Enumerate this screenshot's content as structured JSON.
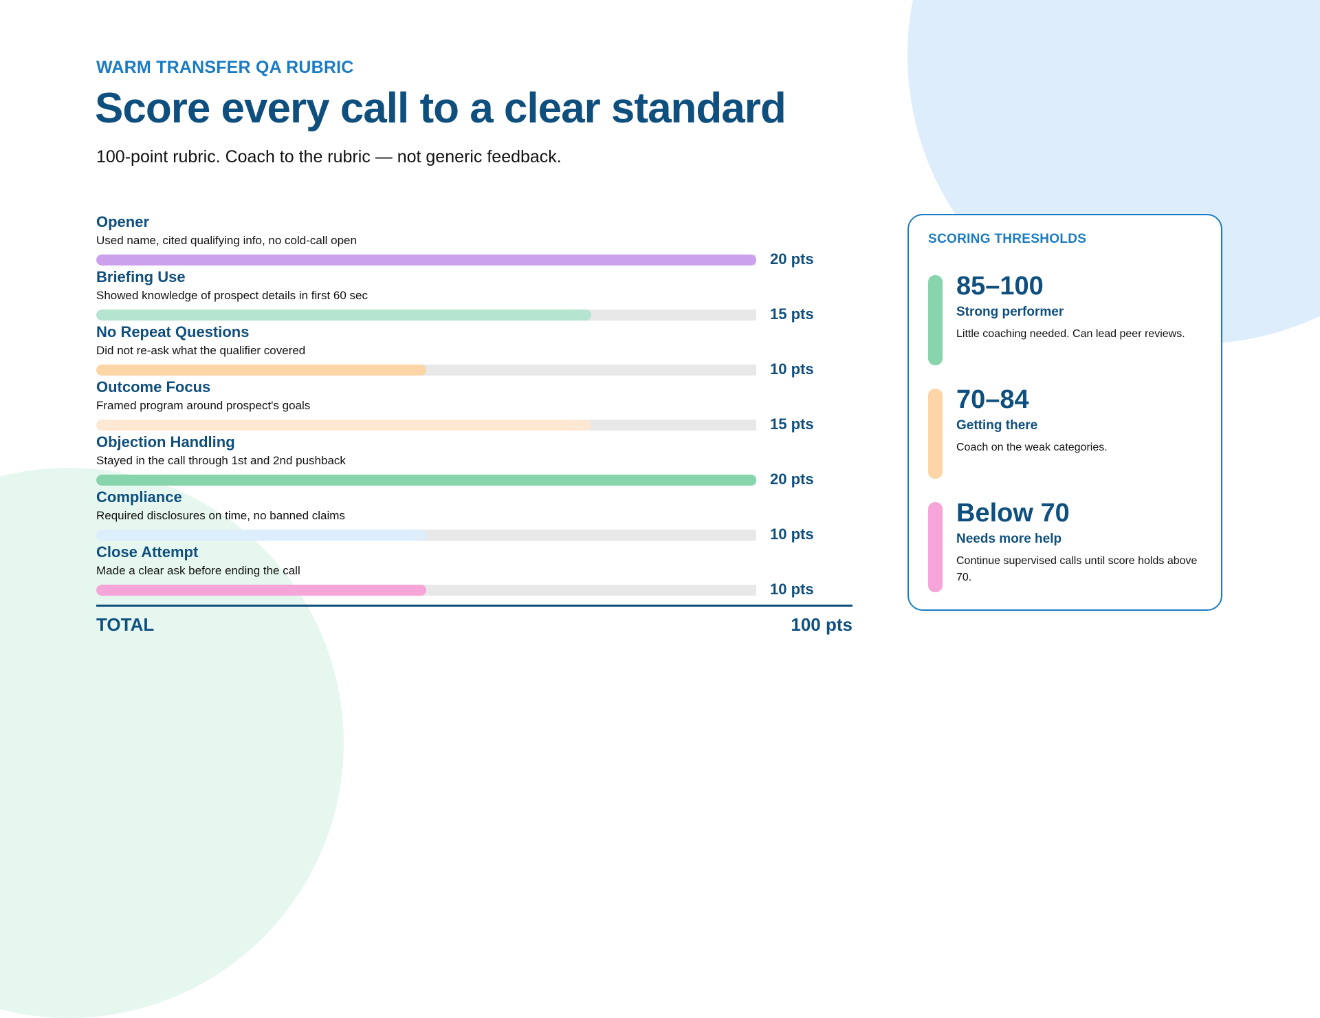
{
  "header": {
    "eyebrow": "WARM TRANSFER QA RUBRIC",
    "title": "Score every call to a clear standard",
    "subtitle": "100-point rubric. Coach to the rubric — not generic feedback."
  },
  "rubric": {
    "max_points_scale": 20,
    "items": [
      {
        "name": "Opener",
        "description": "Used name, cited qualifying info, no cold-call open",
        "points": 20,
        "points_label": "20 pts",
        "color": "#CBA0EC"
      },
      {
        "name": "Briefing Use",
        "description": "Showed knowledge of prospect details in first 60 sec",
        "points": 15,
        "points_label": "15 pts",
        "color": "#B5E4D0"
      },
      {
        "name": "No Repeat Questions",
        "description": "Did not re-ask what the qualifier covered",
        "points": 10,
        "points_label": "10 pts",
        "color": "#FDD5A6"
      },
      {
        "name": "Outcome Focus",
        "description": "Framed program around prospect's goals",
        "points": 15,
        "points_label": "15 pts",
        "color": "#FEE7D3"
      },
      {
        "name": "Objection Handling",
        "description": "Stayed in the call through 1st and 2nd pushback",
        "points": 20,
        "points_label": "20 pts",
        "color": "#87D4AD"
      },
      {
        "name": "Compliance",
        "description": "Required disclosures on time, no banned claims",
        "points": 10,
        "points_label": "10 pts",
        "color": "#DCEDFC"
      },
      {
        "name": "Close Attempt",
        "description": "Made a clear ask before ending the call",
        "points": 10,
        "points_label": "10 pts",
        "color": "#F5A5D8"
      }
    ],
    "total_label": "TOTAL",
    "total_value": "100 pts"
  },
  "thresholds": {
    "title": "SCORING THRESHOLDS",
    "tiers": [
      {
        "range": "85–100",
        "label": "Strong performer",
        "description": "Little coaching needed. Can lead peer reviews.",
        "color": "#87D4AD"
      },
      {
        "range": "70–84",
        "label": "Getting there",
        "description": "Coach on the weak categories.",
        "color": "#FDD5A6"
      },
      {
        "range": "Below 70",
        "label": "Needs more help",
        "description": "Continue supervised calls until score holds above 70.",
        "color": "#F5A5D8"
      }
    ]
  },
  "colors": {
    "primary": "#0F4F7E",
    "accent": "#1B7BC2",
    "track": "#E8E8E8",
    "bg_circle_blue": "#DDEDFC",
    "bg_circle_green": "#E6F7EF"
  }
}
